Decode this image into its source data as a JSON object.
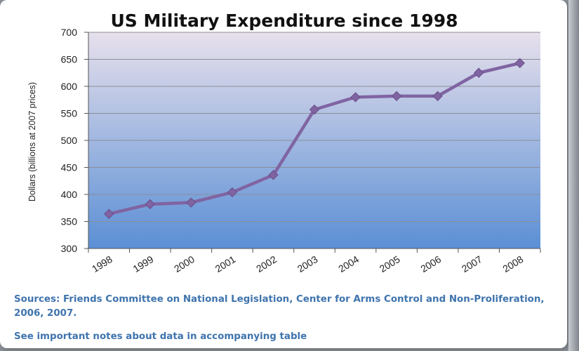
{
  "chart_data": {
    "type": "line",
    "title": "US Military Expenditure since 1998",
    "ylabel": "Dollars (billions at 2007 prices)",
    "xlabel": "",
    "ylim": [
      300,
      700
    ],
    "yticks": [
      300,
      350,
      400,
      450,
      500,
      550,
      600,
      650,
      700
    ],
    "categories": [
      "1998",
      "1999",
      "2000",
      "2001",
      "2002",
      "2003",
      "2004",
      "2005",
      "2006",
      "2007",
      "2008"
    ],
    "series": [
      {
        "name": "US Military Expenditure",
        "color": "#8064a2",
        "values": [
          364,
          382,
          385,
          404,
          436,
          557,
          580,
          582,
          582,
          625,
          643
        ]
      }
    ],
    "grid": true,
    "legend": "none"
  },
  "sources_text": "Sources: Friends Committee on National Legislation, Center for Arms Control and Non-Proliferation, 2006, 2007.",
  "notes_text": "See important notes about data in accompanying table",
  "colors": {
    "plot_top": "#e7e0ec",
    "plot_bottom": "#5b8fd5",
    "line": "#8064a2",
    "source_text": "#3f74ad"
  }
}
